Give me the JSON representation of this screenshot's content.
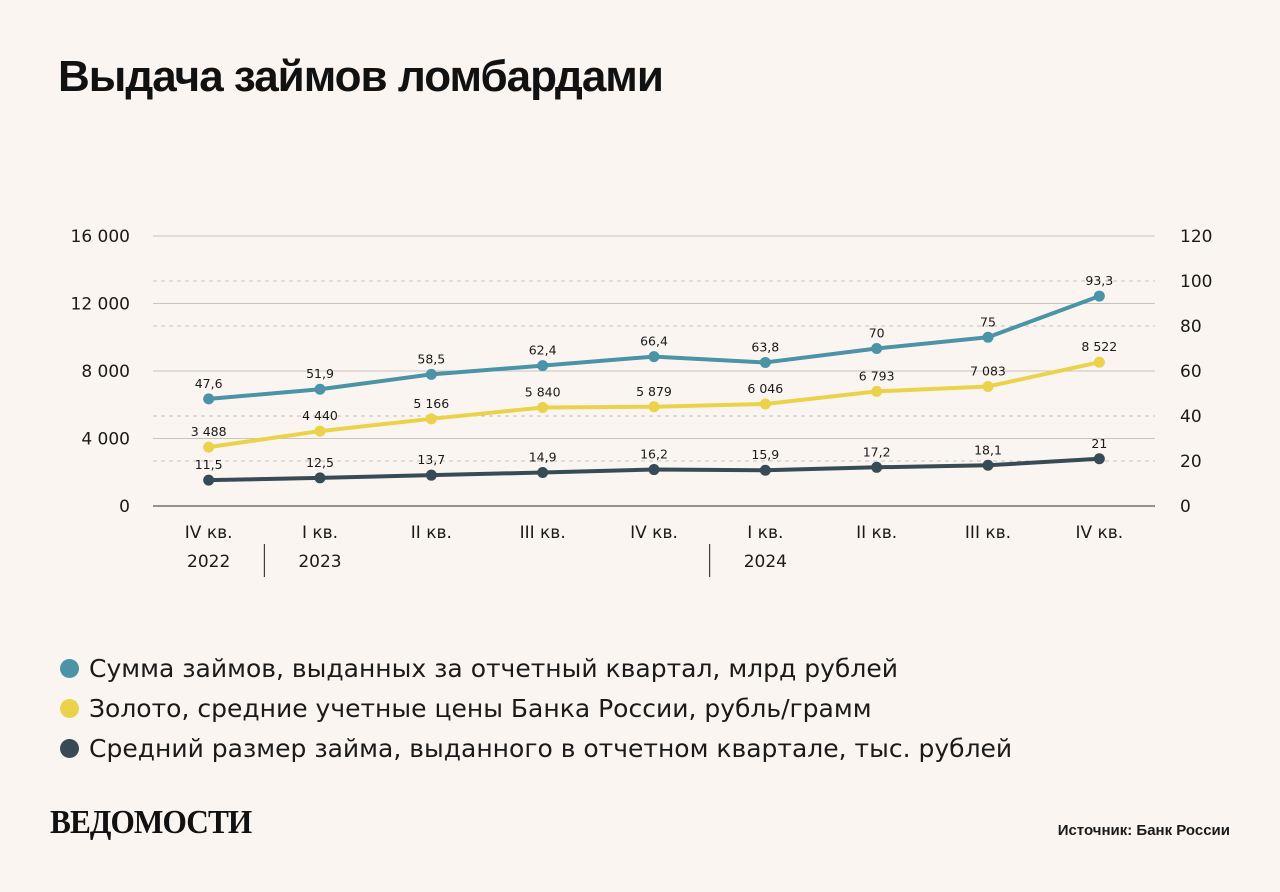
{
  "title": "Выдача займов ломбардами",
  "chart_data": {
    "type": "line",
    "categories": [
      "IV кв.",
      "I кв.",
      "II кв.",
      "III кв.",
      "IV кв.",
      "I кв.",
      "II кв.",
      "III кв.",
      "IV кв."
    ],
    "years": [
      {
        "label": "2022",
        "index": 0
      },
      {
        "label": "2023",
        "index": 1
      },
      {
        "label": "2024",
        "index": 5
      }
    ],
    "left_axis": {
      "ticks": [
        "16 000",
        "12 000",
        "8 000",
        "4 000",
        "0"
      ],
      "tick_values": [
        16000,
        12000,
        8000,
        4000,
        0
      ],
      "range": [
        0,
        16000
      ]
    },
    "right_axis": {
      "ticks": [
        "120",
        "100",
        "80",
        "60",
        "40",
        "20",
        "0"
      ],
      "tick_values": [
        120,
        100,
        80,
        60,
        40,
        20,
        0
      ],
      "range": [
        0,
        120
      ]
    },
    "series": [
      {
        "name": "Сумма займов, выданных за отчетный квартал, млрд рублей",
        "axis": "right",
        "color": "#4b93a6",
        "values": [
          47.6,
          51.9,
          58.5,
          62.4,
          66.4,
          63.8,
          70,
          75,
          93.3
        ],
        "labels": [
          "47,6",
          "51,9",
          "58,5",
          "62,4",
          "66,4",
          "63,8",
          "70",
          "75",
          "93,3"
        ]
      },
      {
        "name": "Золото, средние учетные цены Банка России, рубль/грамм",
        "axis": "left",
        "color": "#ead34a",
        "values": [
          3488,
          4440,
          5166,
          5840,
          5879,
          6046,
          6793,
          7083,
          8522
        ],
        "labels": [
          "3 488",
          "4 440",
          "5 166",
          "5 840",
          "5 879",
          "6 046",
          "6 793",
          "7 083",
          "8 522"
        ]
      },
      {
        "name": "Средний размер займа, выданного в отчетном квартале, тыс. рублей",
        "axis": "right",
        "color": "#374b55",
        "values": [
          11.5,
          12.5,
          13.7,
          14.9,
          16.2,
          15.9,
          17.2,
          18.1,
          21
        ],
        "labels": [
          "11,5",
          "12,5",
          "13,7",
          "14,9",
          "16,2",
          "15,9",
          "17,2",
          "18,1",
          "21"
        ]
      }
    ]
  },
  "legend": [
    {
      "label": "Сумма займов, выданных за отчетный квартал, млрд рублей",
      "color": "#4b93a6"
    },
    {
      "label": "Золото, средние учетные цены Банка России, рубль/грамм",
      "color": "#ead34a"
    },
    {
      "label": "Средний размер займа, выданного в отчетном квартале, тыс. рублей",
      "color": "#374b55"
    }
  ],
  "logo": "ВЕДОМОСТИ",
  "source": "Источник: Банк России"
}
